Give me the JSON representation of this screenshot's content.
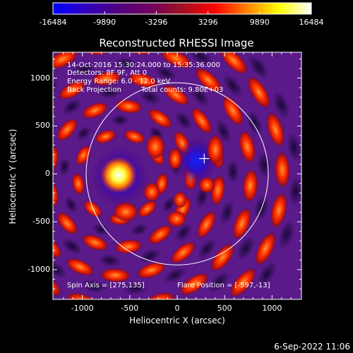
{
  "colorbar": {
    "ticks": [
      "-16484",
      "-9890",
      "-3296",
      "3296",
      "9890",
      "16484"
    ],
    "tick_values": [
      -16484,
      -9890,
      -3296,
      3296,
      9890,
      16484
    ],
    "range": [
      -16484,
      16484
    ],
    "stops": [
      "#0000ff",
      "#3000c0",
      "#500080",
      "#700060",
      "#a01020",
      "#ff0000",
      "#ff8000",
      "#ffff00",
      "#ffffff"
    ]
  },
  "plot": {
    "title": "Reconstructed RHESSI Image",
    "xlabel": "Heliocentric X (arcsec)",
    "ylabel": "Heliocentric Y (arcsec)",
    "xlim": [
      -1310,
      1310
    ],
    "ylim": [
      -1310,
      1270
    ],
    "x_ticks": [
      {
        "value": -1000,
        "label": "-1000"
      },
      {
        "value": -500,
        "label": "-500"
      },
      {
        "value": 0,
        "label": "0"
      },
      {
        "value": 500,
        "label": "500"
      },
      {
        "value": 1000,
        "label": "1000"
      }
    ],
    "y_ticks": [
      {
        "value": 1000,
        "label": "1000"
      },
      {
        "value": 500,
        "label": "500"
      },
      {
        "value": 0,
        "label": "0"
      },
      {
        "value": -500,
        "label": "-500"
      },
      {
        "value": -1000,
        "label": "-1000"
      }
    ],
    "solar_radius_arcsec": 960,
    "flare_marker": [
      285,
      160
    ]
  },
  "info": {
    "time": "14-Oct-2016 15:30:24.000 to 15:35:36.000",
    "detectors": "Detectors: 8F 9F, Att 0",
    "energy": "Energy Range: 6.0 - 12.0 keV",
    "method": "Back Projection",
    "counts": "Total counts: 9.80E+03",
    "spin_axis": "Spin Axis = [275,135]",
    "flare_position": "Flare Position = [-597,-13]"
  },
  "footer": {
    "date": "6-Sep-2022 11:06"
  }
}
